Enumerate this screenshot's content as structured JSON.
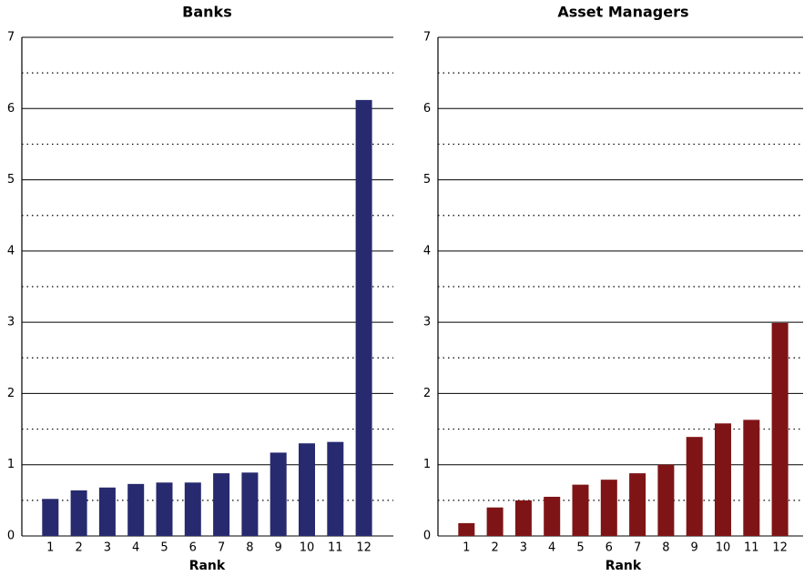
{
  "chart_data": [
    {
      "type": "bar",
      "title": "Banks",
      "x_label": "Rank",
      "categories": [
        "1",
        "2",
        "3",
        "4",
        "5",
        "6",
        "7",
        "8",
        "9",
        "10",
        "11",
        "12"
      ],
      "values": [
        0.52,
        0.64,
        0.68,
        0.73,
        0.75,
        0.75,
        0.88,
        0.89,
        1.17,
        1.3,
        1.32,
        6.12
      ],
      "color": "#272a6e",
      "ylim": [
        0,
        7
      ],
      "yticks": [
        0,
        1,
        2,
        3,
        4,
        5,
        6,
        7
      ],
      "minor_yticks": [
        0.5,
        1.5,
        2.5,
        3.5,
        4.5,
        5.5,
        6.5
      ],
      "grid": true
    },
    {
      "type": "bar",
      "title": "Asset Managers",
      "x_label": "Rank",
      "categories": [
        "1",
        "2",
        "3",
        "4",
        "5",
        "6",
        "7",
        "8",
        "9",
        "10",
        "11",
        "12"
      ],
      "values": [
        0.18,
        0.4,
        0.5,
        0.55,
        0.72,
        0.79,
        0.88,
        1.0,
        1.39,
        1.58,
        1.63,
        2.99
      ],
      "color": "#7f1416",
      "ylim": [
        0,
        7
      ],
      "yticks": [
        0,
        1,
        2,
        3,
        4,
        5,
        6,
        7
      ],
      "minor_yticks": [
        0.5,
        1.5,
        2.5,
        3.5,
        4.5,
        5.5,
        6.5
      ],
      "grid": true
    }
  ]
}
